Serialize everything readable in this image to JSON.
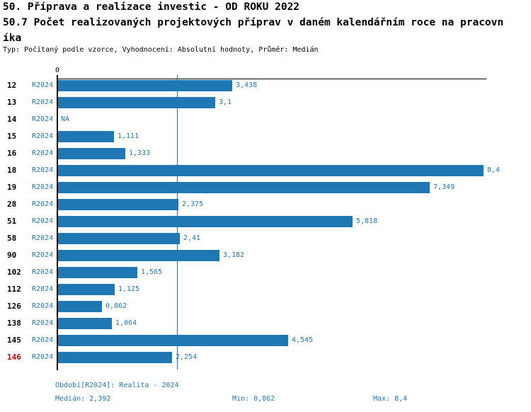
{
  "colors": {
    "accent_blue": "#1f77b4",
    "highlight_red": "#cc0000",
    "axis_black": "#000000"
  },
  "header": {
    "title_line1": "50. Příprava a realizace investic - OD ROKU 2022",
    "title_line2": "50.7 Počet realizovaných projektových příprav v daném kalendářním roce na pracovn",
    "title_line3": "íka",
    "meta": "Typ: Počítaný podle vzorce, Vyhodnocení: Absolutní hodnoty, Průměr: Medián"
  },
  "chart_data": {
    "type": "bar",
    "orientation": "horizontal",
    "axis_zero_label": "0",
    "xlim": [
      0,
      8.4
    ],
    "grid_on": true,
    "gridline_value": 2.392,
    "median": 2.392,
    "min": 0.862,
    "max": 8.4,
    "period": "R2024",
    "categories": [
      "12",
      "13",
      "14",
      "15",
      "16",
      "18",
      "19",
      "28",
      "51",
      "58",
      "90",
      "102",
      "112",
      "126",
      "138",
      "145",
      "146"
    ],
    "rows": [
      {
        "category": "12",
        "period": "R2024",
        "value": 3.438,
        "display": "3,438",
        "highlight": false
      },
      {
        "category": "13",
        "period": "R2024",
        "value": 3.1,
        "display": "3,1",
        "highlight": false
      },
      {
        "category": "14",
        "period": "R2024",
        "value": null,
        "display": "NA",
        "highlight": false
      },
      {
        "category": "15",
        "period": "R2024",
        "value": 1.111,
        "display": "1,111",
        "highlight": false
      },
      {
        "category": "16",
        "period": "R2024",
        "value": 1.333,
        "display": "1,333",
        "highlight": false
      },
      {
        "category": "18",
        "period": "R2024",
        "value": 8.4,
        "display": "8,4",
        "highlight": false
      },
      {
        "category": "19",
        "period": "R2024",
        "value": 7.349,
        "display": "7,349",
        "highlight": false
      },
      {
        "category": "28",
        "period": "R2024",
        "value": 2.375,
        "display": "2,375",
        "highlight": false
      },
      {
        "category": "51",
        "period": "R2024",
        "value": 5.818,
        "display": "5,818",
        "highlight": false
      },
      {
        "category": "58",
        "period": "R2024",
        "value": 2.41,
        "display": "2,41",
        "highlight": false
      },
      {
        "category": "90",
        "period": "R2024",
        "value": 3.182,
        "display": "3,182",
        "highlight": false
      },
      {
        "category": "102",
        "period": "R2024",
        "value": 1.565,
        "display": "1,565",
        "highlight": false
      },
      {
        "category": "112",
        "period": "R2024",
        "value": 1.125,
        "display": "1,125",
        "highlight": false
      },
      {
        "category": "126",
        "period": "R2024",
        "value": 0.862,
        "display": "0,862",
        "highlight": false
      },
      {
        "category": "138",
        "period": "R2024",
        "value": 1.064,
        "display": "1,064",
        "highlight": false
      },
      {
        "category": "145",
        "period": "R2024",
        "value": 4.545,
        "display": "4,545",
        "highlight": false
      },
      {
        "category": "146",
        "period": "R2024",
        "value": 2.254,
        "display": "2,254",
        "highlight": true
      }
    ]
  },
  "footer": {
    "period_info": "Období[R2024]: Realita - 2024",
    "median_label": "Medián: 2,392",
    "min_label": "Min: 0,862",
    "max_label": "Max: 8,4"
  }
}
